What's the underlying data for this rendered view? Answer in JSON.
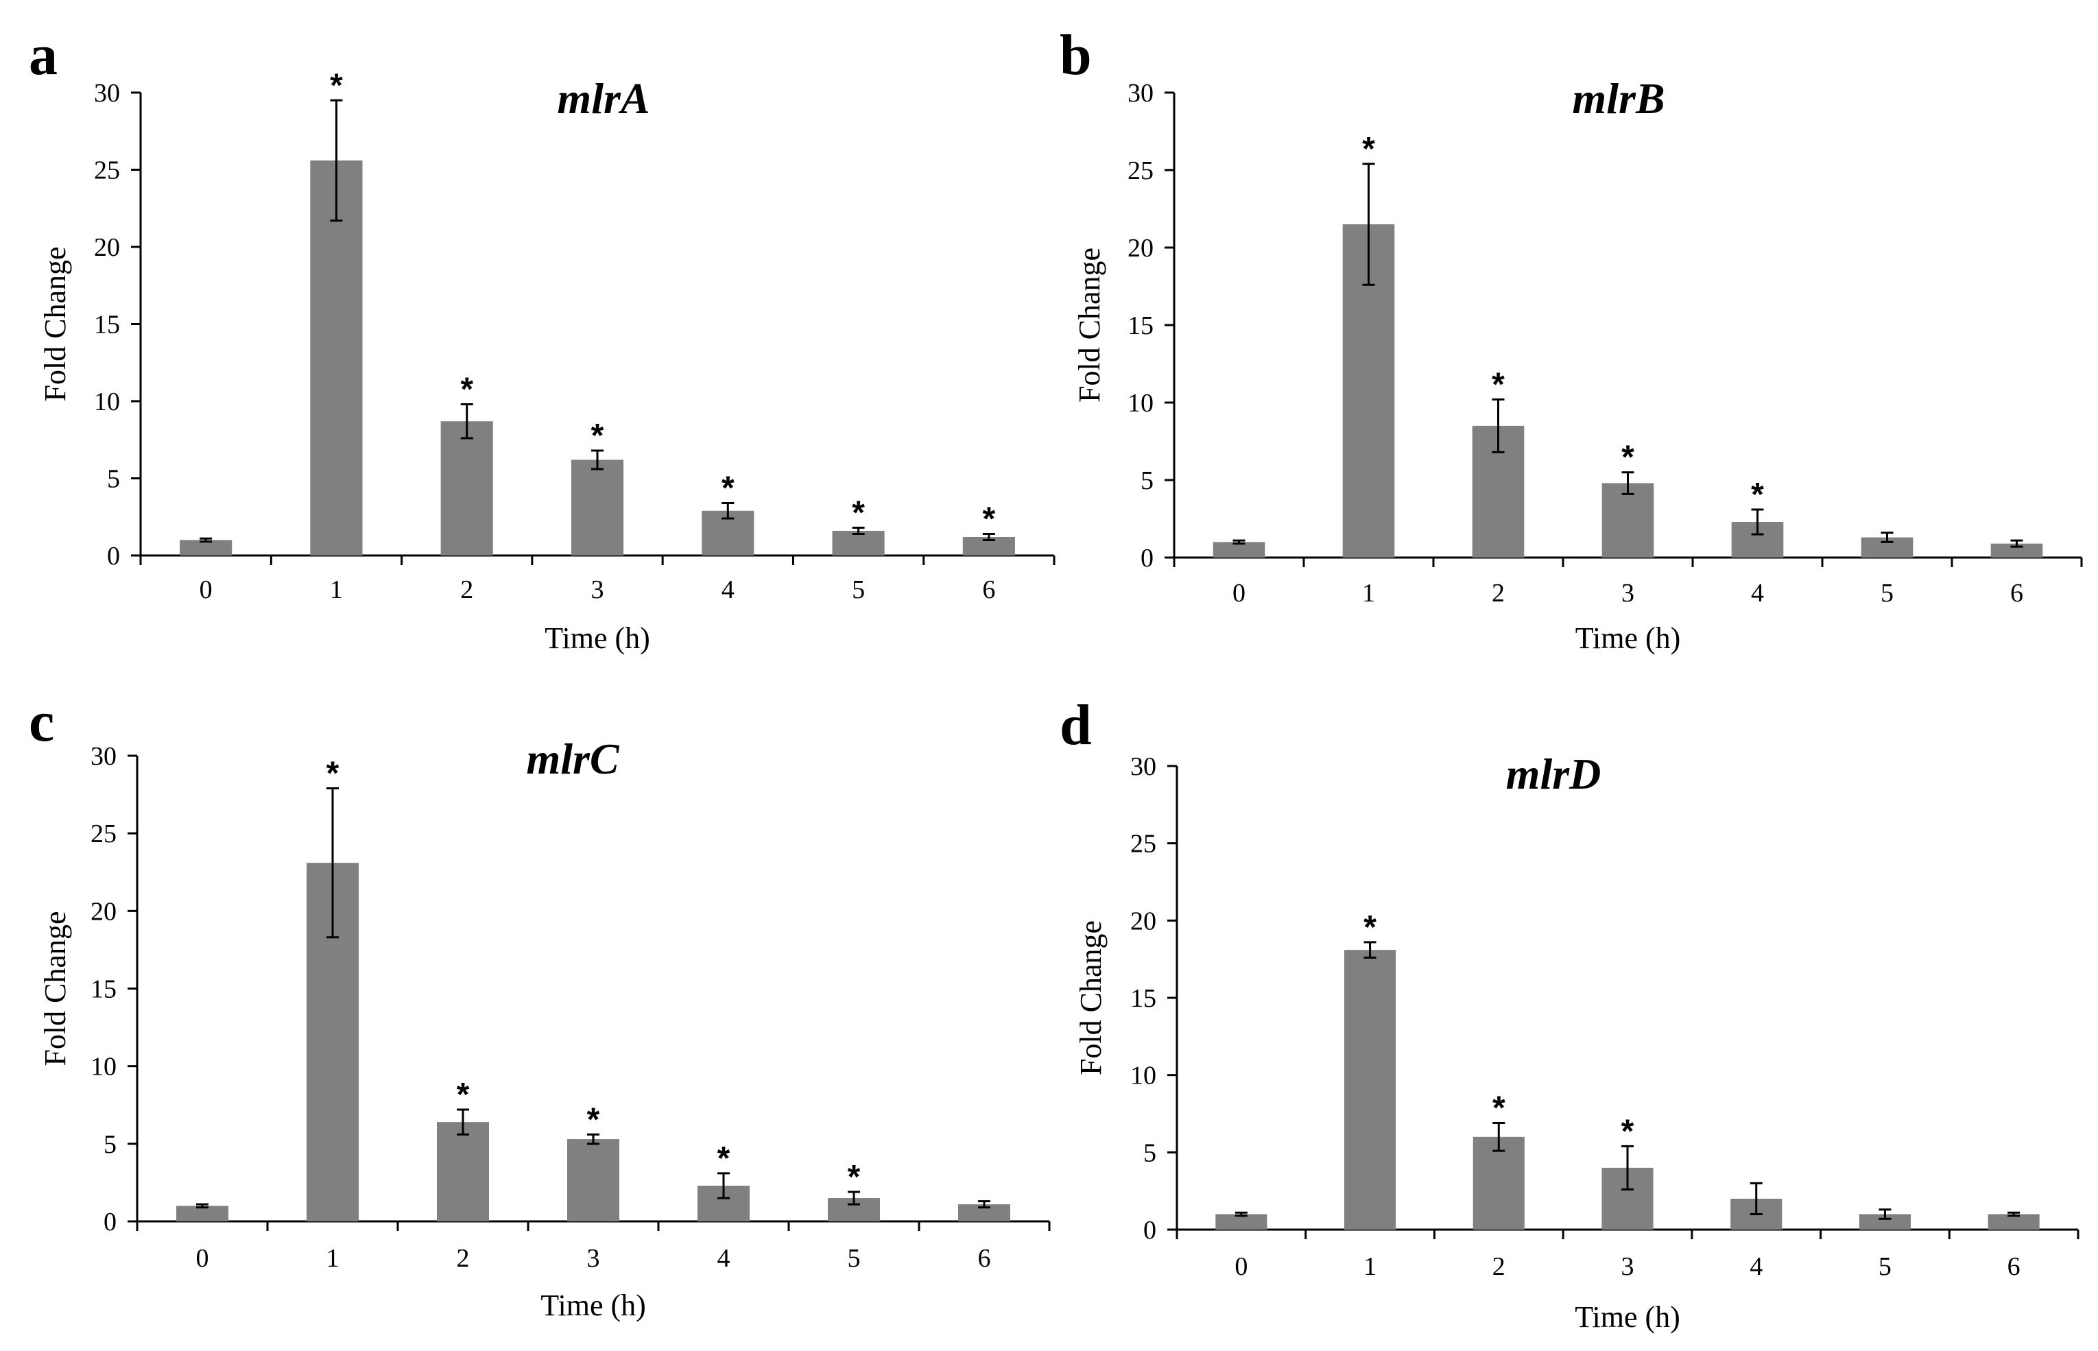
{
  "chart_data": [
    {
      "type": "bar",
      "panel": "a",
      "title": "mlrA",
      "xlabel": "Time (h)",
      "ylabel": "Fold Change",
      "ylim": [
        0,
        30
      ],
      "yticks": [
        0,
        5,
        10,
        15,
        20,
        25,
        30
      ],
      "categories": [
        "0",
        "1",
        "2",
        "3",
        "4",
        "5",
        "6"
      ],
      "values": [
        1.0,
        25.6,
        8.7,
        6.2,
        2.9,
        1.6,
        1.2
      ],
      "errors": [
        0.1,
        3.9,
        1.1,
        0.6,
        0.5,
        0.2,
        0.2
      ],
      "significant": [
        "",
        "*",
        "*",
        "*",
        "*",
        "*",
        "*"
      ]
    },
    {
      "type": "bar",
      "panel": "b",
      "title": "mlrB",
      "xlabel": "Time (h)",
      "ylabel": "Fold Change",
      "ylim": [
        0,
        30
      ],
      "yticks": [
        0,
        5,
        10,
        15,
        20,
        25,
        30
      ],
      "categories": [
        "0",
        "1",
        "2",
        "3",
        "4",
        "5",
        "6"
      ],
      "values": [
        1.0,
        21.5,
        8.5,
        4.8,
        2.3,
        1.3,
        0.9
      ],
      "errors": [
        0.1,
        3.9,
        1.7,
        0.7,
        0.8,
        0.3,
        0.2
      ],
      "significant": [
        "",
        "*",
        "*",
        "*",
        "*",
        "",
        ""
      ]
    },
    {
      "type": "bar",
      "panel": "c",
      "title": "mlrC",
      "xlabel": "Time (h)",
      "ylabel": "Fold Change",
      "ylim": [
        0,
        30
      ],
      "yticks": [
        0,
        5,
        10,
        15,
        20,
        25,
        30
      ],
      "categories": [
        "0",
        "1",
        "2",
        "3",
        "4",
        "5",
        "6"
      ],
      "values": [
        1.0,
        23.1,
        6.4,
        5.3,
        2.3,
        1.5,
        1.1
      ],
      "errors": [
        0.1,
        4.8,
        0.8,
        0.3,
        0.8,
        0.4,
        0.2
      ],
      "significant": [
        "",
        "*",
        "*",
        "*",
        "*",
        "*",
        ""
      ]
    },
    {
      "type": "bar",
      "panel": "d",
      "title": "mlrD",
      "xlabel": "Time (h)",
      "ylabel": "Fold Change",
      "ylim": [
        0,
        30
      ],
      "yticks": [
        0,
        5,
        10,
        15,
        20,
        25,
        30
      ],
      "categories": [
        "0",
        "1",
        "2",
        "3",
        "4",
        "5",
        "6"
      ],
      "values": [
        1.0,
        18.1,
        6.0,
        4.0,
        2.0,
        1.0,
        1.0
      ],
      "errors": [
        0.1,
        0.5,
        0.9,
        1.4,
        1.0,
        0.3,
        0.1
      ],
      "significant": [
        "",
        "*",
        "*",
        "*",
        "",
        "",
        ""
      ]
    }
  ]
}
